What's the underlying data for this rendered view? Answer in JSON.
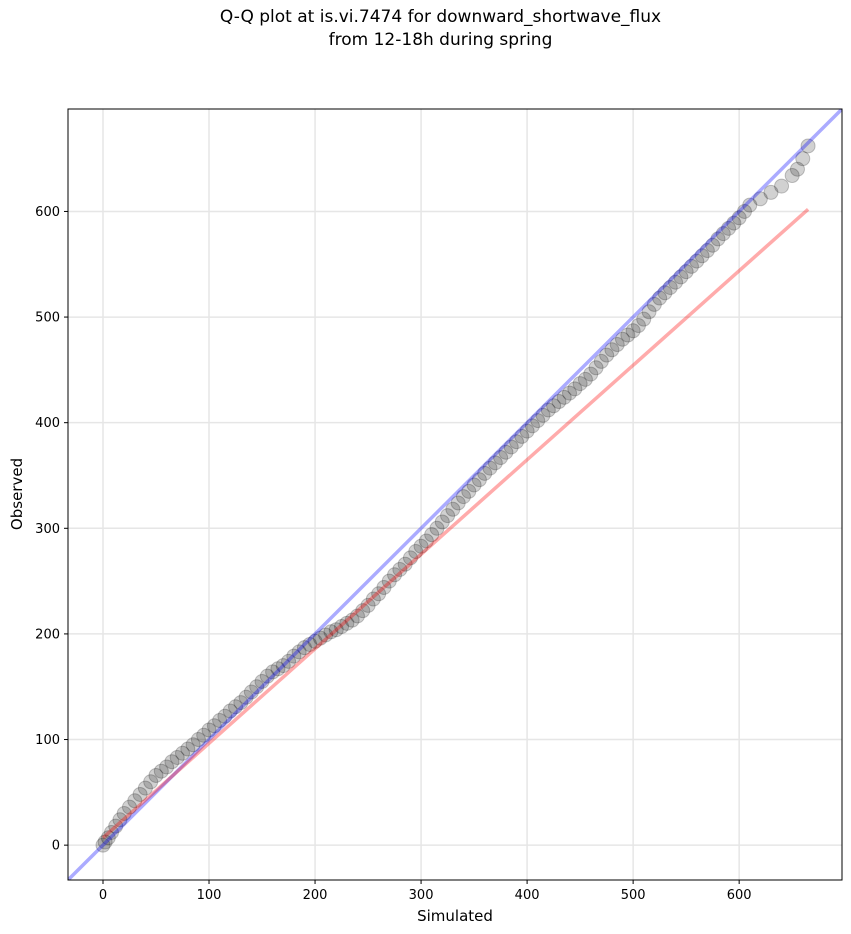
{
  "chart_data": {
    "type": "scatter",
    "title": "Q-Q plot at is.vi.7474 for downward_shortwave_flux",
    "subtitle": "from 12-18h during spring",
    "xlabel": "Simulated",
    "ylabel": "Observed",
    "xlim": [
      -33,
      697
    ],
    "ylim": [
      -33,
      697
    ],
    "xticks": [
      0,
      100,
      200,
      300,
      400,
      500,
      600
    ],
    "yticks": [
      0,
      100,
      200,
      300,
      400,
      500,
      600
    ],
    "grid": true,
    "colors": {
      "points": "#000000",
      "one_to_one": "#0000ff",
      "fit": "#ff0000",
      "grid": "#e6e6e6"
    },
    "series": [
      {
        "type": "scatter",
        "x": [
          0,
          2,
          5,
          8,
          12,
          16,
          20,
          25,
          30,
          35,
          40,
          45,
          50,
          55,
          60,
          65,
          70,
          75,
          80,
          85,
          90,
          95,
          100,
          105,
          110,
          115,
          120,
          125,
          130,
          135,
          140,
          145,
          150,
          155,
          160,
          165,
          170,
          175,
          180,
          185,
          190,
          195,
          200,
          205,
          210,
          215,
          220,
          225,
          230,
          235,
          240,
          245,
          250,
          255,
          260,
          265,
          270,
          275,
          280,
          285,
          290,
          295,
          300,
          305,
          310,
          315,
          320,
          325,
          330,
          335,
          340,
          345,
          350,
          355,
          360,
          365,
          370,
          375,
          380,
          385,
          390,
          395,
          400,
          405,
          410,
          415,
          420,
          425,
          430,
          435,
          440,
          445,
          450,
          455,
          460,
          465,
          470,
          475,
          480,
          485,
          490,
          495,
          500,
          505,
          510,
          515,
          520,
          525,
          530,
          535,
          540,
          545,
          550,
          555,
          560,
          565,
          570,
          575,
          580,
          585,
          590,
          595,
          600,
          605,
          610,
          620,
          630,
          640,
          650,
          655,
          660,
          665
        ],
        "y": [
          0,
          3,
          7,
          12,
          18,
          24,
          30,
          36,
          42,
          48,
          54,
          60,
          66,
          70,
          74,
          79,
          83,
          87,
          91,
          95,
          100,
          104,
          109,
          113,
          118,
          122,
          127,
          131,
          135,
          140,
          145,
          150,
          155,
          160,
          164,
          167,
          170,
          174,
          179,
          183,
          187,
          190,
          193,
          196,
          199,
          202,
          204,
          207,
          210,
          213,
          217,
          222,
          227,
          233,
          238,
          244,
          250,
          256,
          261,
          266,
          272,
          278,
          283,
          288,
          294,
          300,
          306,
          312,
          318,
          324,
          330,
          335,
          341,
          346,
          352,
          357,
          362,
          367,
          372,
          377,
          382,
          387,
          392,
          397,
          402,
          407,
          412,
          416,
          420,
          424,
          428,
          432,
          437,
          441,
          446,
          452,
          458,
          464,
          469,
          474,
          479,
          483,
          487,
          492,
          498,
          505,
          512,
          518,
          523,
          528,
          533,
          538,
          543,
          548,
          553,
          558,
          563,
          568,
          574,
          579,
          584,
          589,
          594,
          600,
          606,
          612,
          618,
          624,
          634,
          640,
          650,
          662
        ],
        "color": "#000000"
      },
      {
        "type": "line",
        "x": [
          -33,
          697
        ],
        "y": [
          -33,
          697
        ],
        "color": "#0000ff"
      },
      {
        "type": "line",
        "x": [
          0,
          665
        ],
        "y": [
          7,
          602
        ],
        "color": "#ff0000"
      }
    ]
  }
}
